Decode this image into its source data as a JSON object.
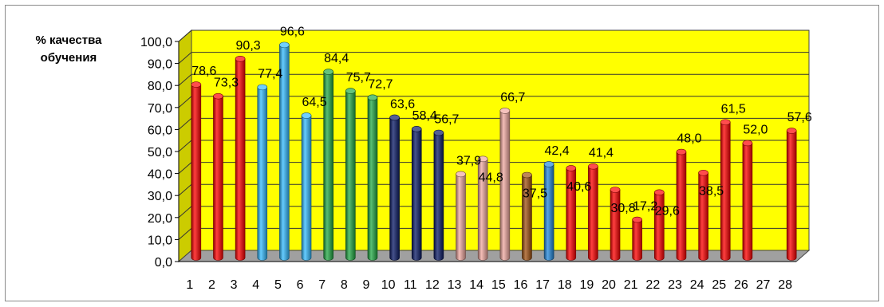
{
  "chart_data": {
    "type": "bar",
    "ylabel_lines": [
      "% качества",
      "обучения"
    ],
    "ylim": [
      0,
      100
    ],
    "yticks": [
      "0,0",
      "10,0",
      "20,0",
      "30,0",
      "40,0",
      "50,0",
      "60,0",
      "70,0",
      "80,0",
      "90,0",
      "100,0"
    ],
    "categories": [
      "1",
      "2",
      "3",
      "4",
      "5",
      "6",
      "7",
      "8",
      "9",
      "10",
      "11",
      "12",
      "13",
      "14",
      "15",
      "16",
      "17",
      "18",
      "19",
      "20",
      "21",
      "22",
      "23",
      "24",
      "25",
      "26",
      "27",
      "28"
    ],
    "values": [
      78.6,
      73.3,
      90.3,
      77.4,
      96.6,
      64.5,
      84.4,
      75.7,
      72.7,
      63.6,
      58.4,
      56.7,
      37.9,
      44.8,
      66.7,
      37.5,
      42.4,
      40.6,
      41.4,
      30.8,
      17.2,
      29.6,
      48.0,
      38.5,
      61.5,
      52.0,
      null,
      57.6
    ],
    "data_labels": [
      "78,6",
      "73,3",
      "90,3",
      "77,4",
      "96,6",
      "64,5",
      "84,4",
      "75,7",
      "72,7",
      "63,6",
      "58,4",
      "56,7",
      "37,9",
      "44,8",
      "66,7",
      "37,5",
      "42,4",
      "40,6",
      "41,4",
      "30,8",
      "17,2",
      "29,6",
      "48,0",
      "38,5",
      "61,5",
      "52,0",
      "",
      "57,6"
    ],
    "bar_colors": [
      "#ff0000",
      "#ff0000",
      "#ff0000",
      "#33bbff",
      "#33bbff",
      "#33bbff",
      "#22aa44",
      "#22aa44",
      "#22aa44",
      "#0a1a66",
      "#0a1a66",
      "#0a1a66",
      "#f0a8a0",
      "#f0a8a0",
      "#f0a8a0",
      "#a05010",
      "#2288dd",
      "#ff0000",
      "#ff0000",
      "#ff0000",
      "#ff0000",
      "#ff0000",
      "#ff0000",
      "#ff0000",
      "#ff0000",
      "#ff0000",
      "#ff0000",
      "#ff0000"
    ],
    "plot_background": "#ffff00",
    "floor_color": "#a0a0a0",
    "grid": true
  }
}
